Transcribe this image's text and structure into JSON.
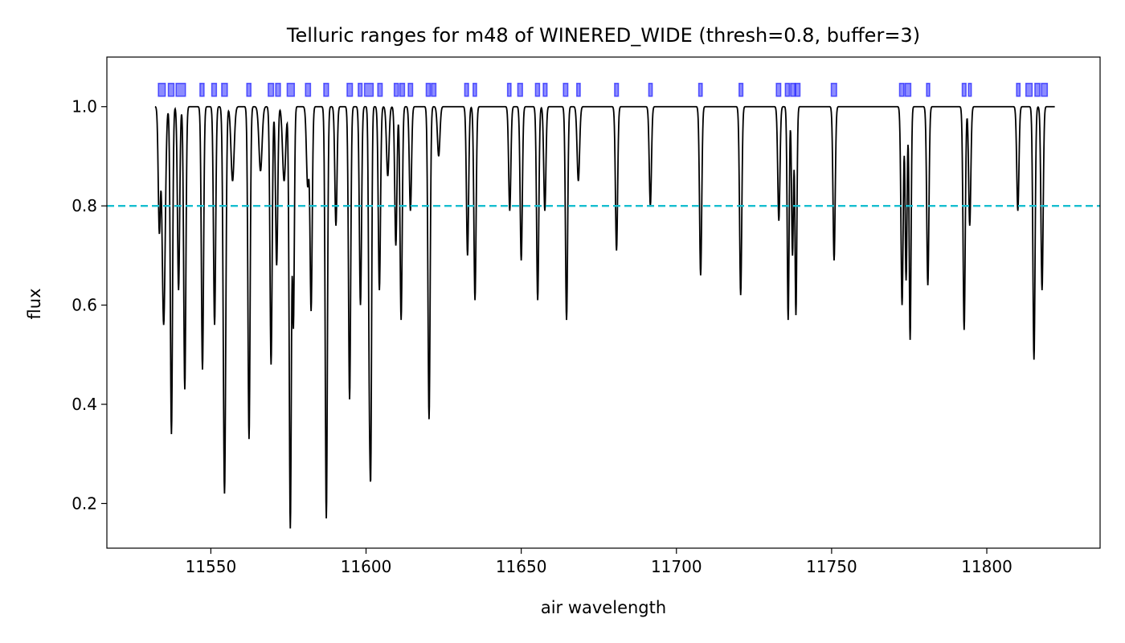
{
  "chart_data": {
    "type": "line",
    "title": "Telluric ranges for m48 of WINERED_WIDE (thresh=0.8, buffer=3)",
    "xlabel": "air wavelength",
    "ylabel": "flux",
    "xlim": [
      11516.5,
      11836.5
    ],
    "ylim": [
      0.11,
      1.1
    ],
    "xticks": [
      11550,
      11600,
      11650,
      11700,
      11750,
      11800
    ],
    "xtick_labels": [
      "11550",
      "11600",
      "11650",
      "11700",
      "11750",
      "11800"
    ],
    "yticks": [
      0.2,
      0.4,
      0.6,
      0.8,
      1.0
    ],
    "ytick_labels": [
      "0.2",
      "0.4",
      "0.6",
      "0.8",
      "1.0"
    ],
    "grid": false,
    "threshold": {
      "value": 0.8,
      "color": "#17becf",
      "style": "dashed"
    },
    "line_color": "#000000",
    "range_color": "#0000ff",
    "range_marker_y": 1.034,
    "x_start": 11532,
    "x_end": 11822,
    "continuum": 1.0,
    "absorption_lines": [
      [
        11533.4,
        0.25,
        0.35
      ],
      [
        11534.8,
        0.44,
        0.5
      ],
      [
        11537.3,
        0.66,
        0.35
      ],
      [
        11539.6,
        0.37,
        0.35
      ],
      [
        11541.6,
        0.57,
        0.35
      ],
      [
        11547.3,
        0.53,
        0.35
      ],
      [
        11551.2,
        0.44,
        0.35
      ],
      [
        11554.4,
        0.78,
        0.4
      ],
      [
        11557.0,
        0.15,
        0.5
      ],
      [
        11562.3,
        0.67,
        0.35
      ],
      [
        11566.0,
        0.13,
        0.5
      ],
      [
        11569.4,
        0.52,
        0.35
      ],
      [
        11571.2,
        0.32,
        0.35
      ],
      [
        11573.6,
        0.15,
        0.5
      ],
      [
        11575.6,
        0.85,
        0.35
      ],
      [
        11576.6,
        0.44,
        0.3
      ],
      [
        11581.2,
        0.16,
        0.4
      ],
      [
        11582.3,
        0.41,
        0.35
      ],
      [
        11587.2,
        0.83,
        0.35
      ],
      [
        11590.3,
        0.24,
        0.35
      ],
      [
        11594.7,
        0.59,
        0.35
      ],
      [
        11598.2,
        0.4,
        0.35
      ],
      [
        11601.1,
        0.49,
        0.3
      ],
      [
        11601.5,
        0.69,
        0.3
      ],
      [
        11604.3,
        0.37,
        0.35
      ],
      [
        11607.0,
        0.14,
        0.4
      ],
      [
        11609.6,
        0.28,
        0.35
      ],
      [
        11611.3,
        0.43,
        0.35
      ],
      [
        11614.3,
        0.21,
        0.35
      ],
      [
        11620.3,
        0.63,
        0.35
      ],
      [
        11623.4,
        0.1,
        0.4
      ],
      [
        11632.7,
        0.3,
        0.35
      ],
      [
        11635.1,
        0.39,
        0.35
      ],
      [
        11646.3,
        0.21,
        0.35
      ],
      [
        11650.0,
        0.31,
        0.35
      ],
      [
        11655.3,
        0.39,
        0.35
      ],
      [
        11657.6,
        0.21,
        0.35
      ],
      [
        11664.6,
        0.43,
        0.35
      ],
      [
        11668.4,
        0.15,
        0.4
      ],
      [
        11680.7,
        0.29,
        0.35
      ],
      [
        11691.6,
        0.2,
        0.35
      ],
      [
        11707.8,
        0.34,
        0.35
      ],
      [
        11720.7,
        0.38,
        0.35
      ],
      [
        11733.0,
        0.23,
        0.35
      ],
      [
        11736.0,
        0.43,
        0.3
      ],
      [
        11737.4,
        0.3,
        0.3
      ],
      [
        11738.5,
        0.42,
        0.3
      ],
      [
        11750.8,
        0.31,
        0.35
      ],
      [
        11772.7,
        0.4,
        0.35
      ],
      [
        11774.0,
        0.35,
        0.3
      ],
      [
        11775.3,
        0.47,
        0.3
      ],
      [
        11781.0,
        0.36,
        0.35
      ],
      [
        11792.7,
        0.45,
        0.35
      ],
      [
        11794.5,
        0.24,
        0.35
      ],
      [
        11810.0,
        0.21,
        0.35
      ],
      [
        11815.2,
        0.51,
        0.35
      ],
      [
        11817.8,
        0.37,
        0.35
      ]
    ],
    "telluric_ranges": [
      [
        11533.1,
        11535.3
      ],
      [
        11536.3,
        11538.1
      ],
      [
        11538.8,
        11541.8
      ],
      [
        11546.5,
        11547.8
      ],
      [
        11550.3,
        11551.8
      ],
      [
        11553.5,
        11555.3
      ],
      [
        11561.6,
        11562.9
      ],
      [
        11568.5,
        11570.2
      ],
      [
        11570.9,
        11572.4
      ],
      [
        11574.6,
        11576.9
      ],
      [
        11580.5,
        11582.1
      ],
      [
        11586.4,
        11587.9
      ],
      [
        11593.9,
        11595.6
      ],
      [
        11597.5,
        11598.7
      ],
      [
        11599.5,
        11602.3
      ],
      [
        11603.8,
        11605.2
      ],
      [
        11609.1,
        11610.4
      ],
      [
        11610.9,
        11612.4
      ],
      [
        11613.6,
        11615.0
      ],
      [
        11619.4,
        11620.7
      ],
      [
        11621.1,
        11622.5
      ],
      [
        11631.8,
        11633.0
      ],
      [
        11634.5,
        11635.6
      ],
      [
        11645.6,
        11646.7
      ],
      [
        11648.9,
        11650.4
      ],
      [
        11654.6,
        11655.9
      ],
      [
        11657.1,
        11658.3
      ],
      [
        11663.6,
        11665.0
      ],
      [
        11667.9,
        11669.0
      ],
      [
        11680.1,
        11681.3
      ],
      [
        11691.1,
        11692.2
      ],
      [
        11707.2,
        11708.3
      ],
      [
        11720.2,
        11721.4
      ],
      [
        11732.2,
        11733.6
      ],
      [
        11735.1,
        11736.4
      ],
      [
        11736.8,
        11738.2
      ],
      [
        11738.4,
        11739.8
      ],
      [
        11749.9,
        11751.6
      ],
      [
        11771.9,
        11773.3
      ],
      [
        11773.7,
        11775.5
      ],
      [
        11780.6,
        11781.6
      ],
      [
        11792.1,
        11793.3
      ],
      [
        11794.1,
        11795.0
      ],
      [
        11809.6,
        11810.7
      ],
      [
        11812.6,
        11814.6
      ],
      [
        11815.5,
        11817.1
      ],
      [
        11817.6,
        11819.5
      ]
    ]
  }
}
